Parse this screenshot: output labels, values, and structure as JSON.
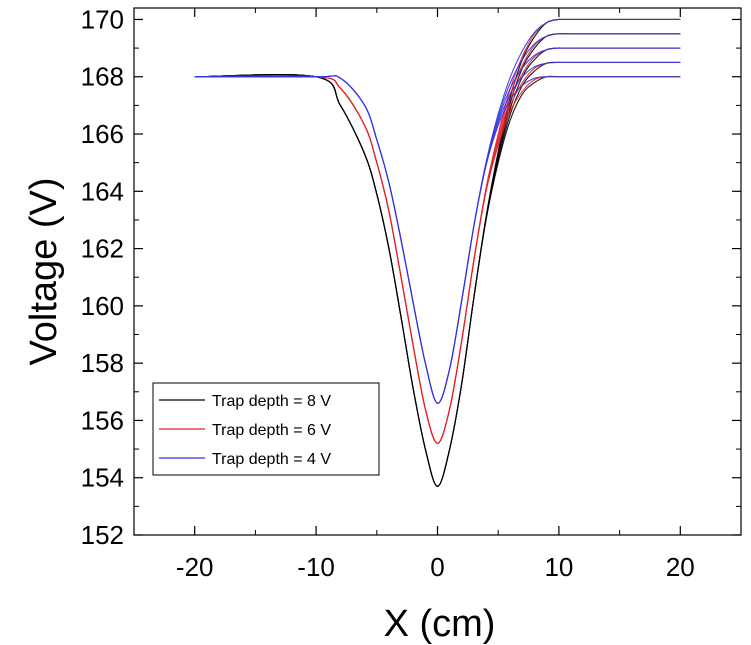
{
  "chart_data": {
    "type": "line",
    "title": "",
    "xlabel": "X (cm)",
    "ylabel": "Voltage (V)",
    "xlim": [
      -25,
      25
    ],
    "ylim": [
      152,
      170.4
    ],
    "xticks": [
      -20,
      -10,
      0,
      10,
      20
    ],
    "yticks": [
      152,
      154,
      156,
      158,
      160,
      162,
      164,
      166,
      168,
      170
    ],
    "grid": false,
    "legend": {
      "position": "bottom-left"
    },
    "series": [
      {
        "name": "Trap depth = 8 V",
        "color": "#000000",
        "x": [
          -20,
          -10,
          -8,
          -6,
          -5,
          -4,
          -3,
          -2,
          -1,
          0,
          1,
          2,
          3,
          4,
          5,
          6,
          7,
          8,
          9,
          10,
          11,
          20
        ],
        "y": [
          168.0,
          168.0,
          167.0,
          165.3,
          163.9,
          162.0,
          159.6,
          157.1,
          155.0,
          153.7,
          155.0,
          157.3,
          160.3,
          163.0,
          165.0,
          166.5,
          167.4,
          167.8,
          168.0,
          168.0,
          168.0,
          168.0
        ],
        "variants_end": [
          168.0,
          168.5,
          169.0,
          169.5,
          170.0
        ]
      },
      {
        "name": "Trap depth = 6 V",
        "color": "#e8202a",
        "x": [
          -20,
          -10,
          -8,
          -6,
          -5,
          -4,
          -3,
          -2,
          -1,
          0,
          1,
          2,
          3,
          4,
          5,
          6,
          7,
          8,
          9,
          10,
          11,
          20
        ],
        "y": [
          168.0,
          168.0,
          167.6,
          166.3,
          165.0,
          163.3,
          161.0,
          158.6,
          156.4,
          155.2,
          156.4,
          158.8,
          161.6,
          164.0,
          165.6,
          166.8,
          167.5,
          167.9,
          168.0,
          168.0,
          168.0,
          168.0
        ],
        "variants_end": [
          168.0,
          168.5,
          169.0,
          169.5,
          170.0
        ]
      },
      {
        "name": "Trap depth = 4 V",
        "color": "#3535e0",
        "x": [
          -20,
          -10,
          -8,
          -6,
          -5,
          -4,
          -3,
          -2,
          -1,
          0,
          1,
          2,
          3,
          4,
          5,
          6,
          7,
          8,
          9,
          10,
          11,
          20
        ],
        "y": [
          168.0,
          168.0,
          167.95,
          167.0,
          165.8,
          164.3,
          162.3,
          160.1,
          158.0,
          156.6,
          157.8,
          160.2,
          162.8,
          164.9,
          166.3,
          167.2,
          167.7,
          167.95,
          168.0,
          168.0,
          168.0,
          168.0
        ],
        "variants_end": [
          168.0,
          168.5,
          169.0,
          169.5,
          170.0
        ]
      }
    ]
  }
}
